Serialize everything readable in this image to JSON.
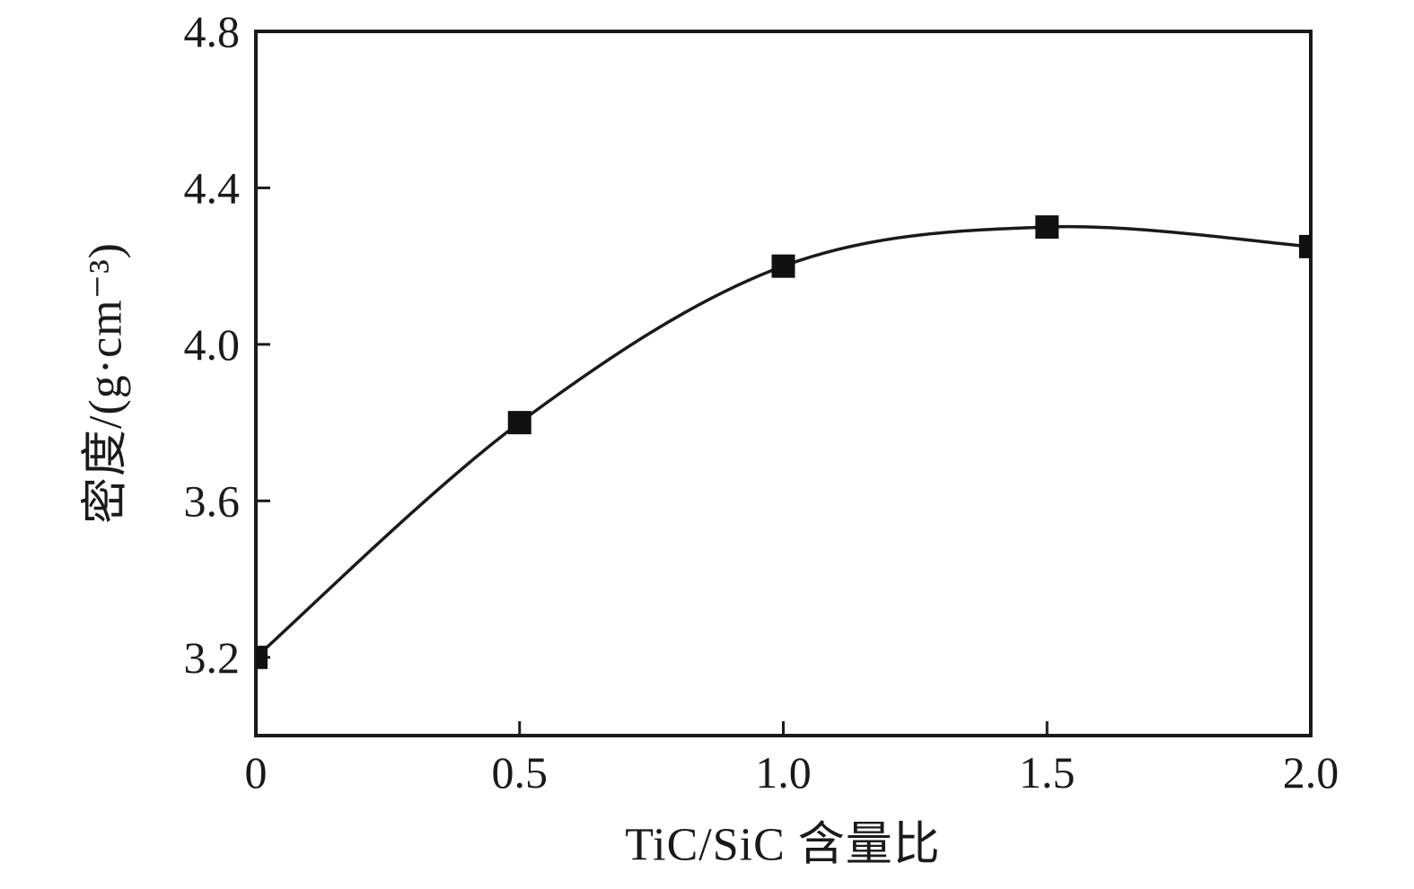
{
  "chart_data": {
    "type": "line",
    "x": [
      0,
      0.5,
      1.0,
      1.5,
      2.0
    ],
    "series": [
      {
        "name": "density",
        "values": [
          3.2,
          3.8,
          4.2,
          4.3,
          4.25
        ]
      }
    ],
    "title": "",
    "xlabel": "TiC/SiC 含量比",
    "ylabel": "密度/(g·cm⁻³)",
    "xlim": [
      0,
      2.0
    ],
    "ylim": [
      3.0,
      4.8
    ],
    "x_ticks": {
      "values": [
        0,
        0.5,
        1.0,
        1.5,
        2.0
      ],
      "labels": [
        "0",
        "0.5",
        "1.0",
        "1.5",
        "2.0"
      ]
    },
    "y_ticks": {
      "values": [
        3.2,
        3.6,
        4.0,
        4.4,
        4.8
      ],
      "labels": [
        "3.2",
        "3.6",
        "4.0",
        "4.4",
        "4.8"
      ]
    },
    "marker": "square",
    "marker_size": 26,
    "line_width": 3.5,
    "grid": false,
    "legend": "none",
    "line_color": "#1a1a1a",
    "marker_color": "#111111",
    "axis_color": "#1a1a1a",
    "text_color": "#1a1a1a"
  },
  "colors": {
    "background": "#ffffff"
  }
}
